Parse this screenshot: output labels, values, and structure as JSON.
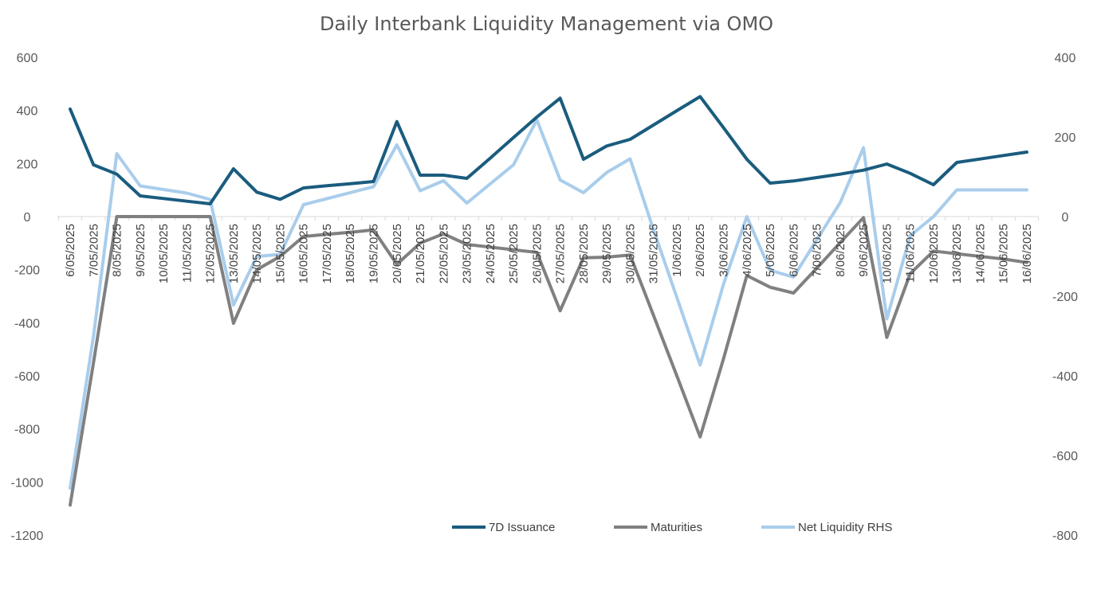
{
  "chart_data": {
    "type": "line",
    "title": "Daily Interbank Liquidity Management via OMO",
    "categories": [
      "6/05/2025",
      "7/05/2025",
      "8/05/2025",
      "9/05/2025",
      "10/05/2025",
      "11/05/2025",
      "12/05/2025",
      "13/05/2025",
      "14/05/2025",
      "15/05/2025",
      "16/05/2025",
      "17/05/2025",
      "18/05/2025",
      "19/05/2025",
      "20/05/2025",
      "21/05/2025",
      "22/05/2025",
      "23/05/2025",
      "24/05/2025",
      "25/05/2025",
      "26/05/2025",
      "27/05/2025",
      "28/05/2025",
      "29/05/2025",
      "30/05/2025",
      "31/05/2025",
      "1/06/2025",
      "2/06/2025",
      "3/06/2025",
      "4/06/2025",
      "5/06/2025",
      "6/06/2025",
      "7/06/2025",
      "8/06/2025",
      "9/06/2025",
      "10/06/2025",
      "11/06/2025",
      "12/06/2025",
      "13/06/2025",
      "14/06/2025",
      "15/06/2025",
      "16/06/2025"
    ],
    "series": [
      {
        "name": "7D Issuance",
        "axis": "left",
        "color": "#1a5c7e",
        "values": [
          405,
          195,
          160,
          78,
          68,
          58,
          48,
          180,
          92,
          65,
          108,
          116,
          124,
          132,
          358,
          156,
          156,
          144,
          220,
          298,
          375,
          446,
          216,
          266,
          291,
          345,
          399,
          452,
          335,
          216,
          126,
          134,
          147,
          160,
          175,
          198,
          163,
          120,
          204,
          217,
          230,
          243
        ]
      },
      {
        "name": "Maturities",
        "axis": "left",
        "color": "#808080",
        "values": [
          -1087,
          -550,
          0,
          0,
          0,
          0,
          0,
          -402,
          -200,
          -150,
          -75,
          -67,
          -59,
          -50,
          -180,
          -100,
          -65,
          -105,
          -115,
          -125,
          -135,
          -355,
          -155,
          -153,
          -145,
          -372,
          -600,
          -830,
          -536,
          -222,
          -266,
          -288,
          -194,
          -98,
          -4,
          -455,
          -215,
          -130,
          -140,
          -150,
          -160,
          -173
        ]
      },
      {
        "name": "Net Liquidity RHS",
        "axis": "right",
        "color": "#a9cdeb",
        "values": [
          -682,
          -300,
          158,
          77,
          68,
          59,
          43,
          -222,
          -100,
          -95,
          30,
          45,
          60,
          75,
          180,
          65,
          90,
          34,
          82,
          130,
          243,
          92,
          60,
          111,
          145,
          -33,
          -203,
          -373,
          -170,
          0,
          -135,
          -152,
          -58,
          35,
          173,
          -257,
          -48,
          0,
          67,
          67,
          67,
          67
        ]
      }
    ],
    "y_left": {
      "min": -1200,
      "max": 600,
      "step": 200
    },
    "y_right": {
      "min": -800,
      "max": 400,
      "step": 200
    },
    "legend_position": "bottom-right",
    "grid": false
  }
}
